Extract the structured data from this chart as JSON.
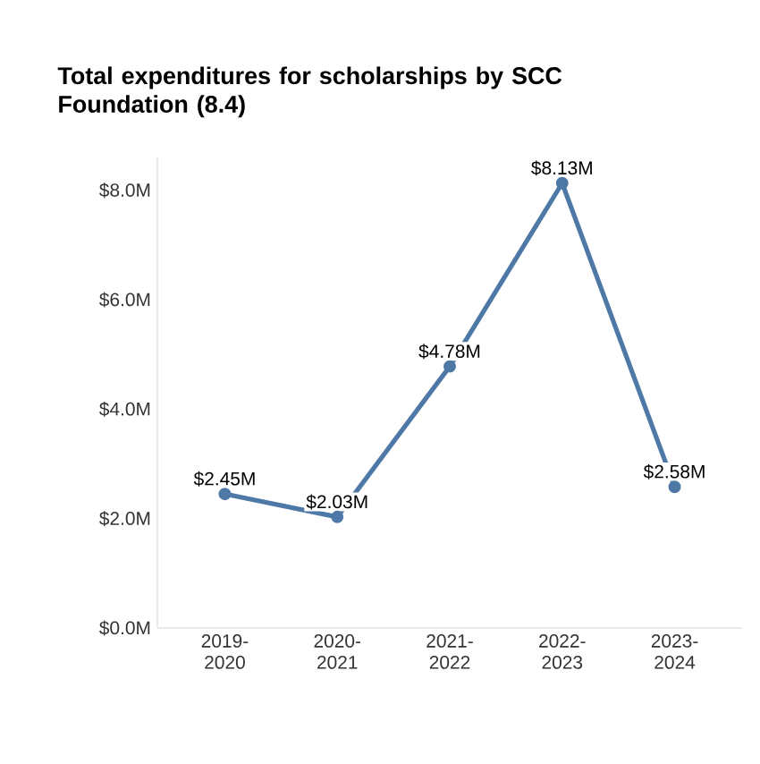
{
  "chart_data": {
    "type": "line",
    "title": "Total expenditures for scholarships by SCC Foundation (8.4)",
    "categories": [
      "2019-2020",
      "2020-2021",
      "2021-2022",
      "2022-2023",
      "2023-2024"
    ],
    "series": [
      {
        "color": "#4e79a7",
        "values": [
          2.45,
          2.03,
          4.78,
          8.13,
          2.58
        ],
        "value_labels": [
          "$2.45M",
          "$2.03M",
          "$4.78M",
          "$8.13M",
          "$2.58M"
        ]
      }
    ],
    "ylim": [
      0,
      8.6
    ],
    "yticks": [
      {
        "value": 0,
        "label": "$0.0M"
      },
      {
        "value": 2,
        "label": "$2.0M"
      },
      {
        "value": 4,
        "label": "$4.0M"
      },
      {
        "value": 6,
        "label": "$6.0M"
      },
      {
        "value": 8,
        "label": "$8.0M"
      }
    ],
    "grid": false,
    "marker": "circle",
    "line_style": "solid"
  }
}
